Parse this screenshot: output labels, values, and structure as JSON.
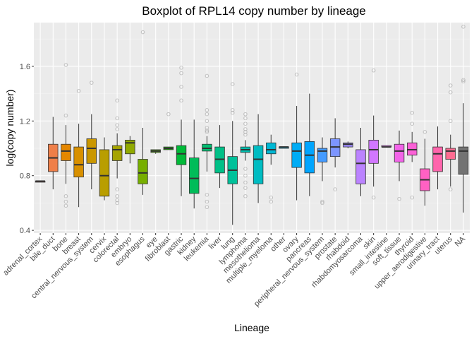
{
  "chart_data": {
    "type": "boxplot",
    "title": "Boxplot of RPL14 copy number by lineage",
    "xlabel": "Lineage",
    "ylabel": "log(copy number)",
    "ylim": [
      0.38,
      1.92
    ],
    "yticks": [
      0.4,
      0.8,
      1.2,
      1.6
    ],
    "ytick_labels": [
      "0.4",
      "0.8",
      "1.2",
      "1.6"
    ],
    "grid": true,
    "legend": "none",
    "categories": [
      {
        "name": "adrenal_cortex",
        "color": "#F8766D",
        "lw": 0.76,
        "q1": 0.76,
        "med": 0.76,
        "q3": 0.76,
        "hw": 0.76,
        "outliers": []
      },
      {
        "name": "bile_duct",
        "color": "#EF7F49",
        "lw": 0.7,
        "q1": 0.83,
        "med": 0.93,
        "q3": 1.03,
        "hw": 1.23,
        "outliers": []
      },
      {
        "name": "bone",
        "color": "#E58700",
        "lw": 0.74,
        "q1": 0.91,
        "med": 0.98,
        "q3": 1.03,
        "hw": 1.17,
        "outliers": [
          0.58,
          0.61,
          0.65,
          1.24,
          1.61
        ]
      },
      {
        "name": "breast",
        "color": "#D89000",
        "lw": 0.57,
        "q1": 0.79,
        "med": 0.88,
        "q3": 1.01,
        "hw": 1.18,
        "outliers": [
          1.42
        ]
      },
      {
        "name": "central_nervous_system",
        "color": "#CA9700",
        "lw": 0.7,
        "q1": 0.89,
        "med": 1.0,
        "q3": 1.07,
        "hw": 1.25,
        "outliers": [
          1.48
        ]
      },
      {
        "name": "cervix",
        "color": "#B99E00",
        "lw": 0.62,
        "q1": 0.65,
        "med": 0.8,
        "q3": 0.99,
        "hw": 1.08,
        "outliers": []
      },
      {
        "name": "colorectal",
        "color": "#A6A400",
        "lw": 0.78,
        "q1": 0.91,
        "med": 0.99,
        "q3": 1.02,
        "hw": 1.11,
        "outliers": [
          0.6,
          0.62,
          0.65,
          0.7,
          1.14,
          1.17,
          1.22,
          1.35
        ]
      },
      {
        "name": "embryo",
        "color": "#91AA00",
        "lw": 0.89,
        "q1": 0.96,
        "med": 1.04,
        "q3": 1.06,
        "hw": 1.09,
        "outliers": []
      },
      {
        "name": "esophagus",
        "color": "#77AF00",
        "lw": 0.66,
        "q1": 0.74,
        "med": 0.82,
        "q3": 0.92,
        "hw": 1.15,
        "outliers": [
          1.85
        ]
      },
      {
        "name": "eye",
        "color": "#52B400",
        "lw": 0.96,
        "q1": 0.97,
        "med": 0.98,
        "q3": 0.99,
        "hw": 0.99,
        "outliers": []
      },
      {
        "name": "fibroblast",
        "color": "#1CB700",
        "lw": 0.99,
        "q1": 0.99,
        "med": 1.0,
        "q3": 1.01,
        "hw": 1.01,
        "outliers": [
          1.25
        ]
      },
      {
        "name": "gastric",
        "color": "#00BA38",
        "lw": 0.65,
        "q1": 0.88,
        "med": 0.96,
        "q3": 1.02,
        "hw": 1.21,
        "outliers": [
          1.35,
          1.45,
          1.55,
          1.59
        ]
      },
      {
        "name": "kidney",
        "color": "#00BC59",
        "lw": 0.56,
        "q1": 0.67,
        "med": 0.78,
        "q3": 0.93,
        "hw": 1.21,
        "outliers": []
      },
      {
        "name": "leukemia",
        "color": "#00BE72",
        "lw": 0.83,
        "q1": 0.98,
        "med": 1.0,
        "q3": 1.03,
        "hw": 1.09,
        "outliers": [
          0.57,
          0.61,
          0.66,
          1.12,
          1.13,
          1.15,
          1.2,
          1.25,
          1.28,
          1.53
        ]
      },
      {
        "name": "liver",
        "color": "#00C087",
        "lw": 0.71,
        "q1": 0.82,
        "med": 0.92,
        "q3": 1.01,
        "hw": 1.17,
        "outliers": []
      },
      {
        "name": "lung",
        "color": "#00C19A",
        "lw": 0.44,
        "q1": 0.74,
        "med": 0.84,
        "q3": 0.94,
        "hw": 1.2,
        "outliers": [
          1.26,
          1.28,
          1.47
        ]
      },
      {
        "name": "lymphoma",
        "color": "#00C0AF",
        "lw": 0.91,
        "q1": 0.97,
        "med": 0.99,
        "q3": 1.01,
        "hw": 1.06,
        "outliers": [
          0.65,
          0.71,
          0.75,
          0.8,
          0.85,
          1.1,
          1.12,
          1.14,
          1.18,
          1.22,
          1.25
        ]
      },
      {
        "name": "mesothelioma",
        "color": "#00BCC2",
        "lw": 0.6,
        "q1": 0.74,
        "med": 0.92,
        "q3": 1.02,
        "hw": 1.25,
        "outliers": []
      },
      {
        "name": "multiple_myeloma",
        "color": "#00B8D4",
        "lw": 0.88,
        "q1": 0.96,
        "med": 0.99,
        "q3": 1.04,
        "hw": 1.1,
        "outliers": [
          0.61,
          0.64
        ]
      },
      {
        "name": "other",
        "color": "#00B3E6",
        "lw": 1.0,
        "q1": 1.0,
        "med": 1.01,
        "q3": 1.01,
        "hw": 1.01,
        "outliers": []
      },
      {
        "name": "ovary",
        "color": "#00ACF5",
        "lw": 0.62,
        "q1": 0.86,
        "med": 0.98,
        "q3": 1.04,
        "hw": 1.31,
        "outliers": [
          1.54
        ]
      },
      {
        "name": "pancreas",
        "color": "#00A5FF",
        "lw": 0.65,
        "q1": 0.82,
        "med": 0.95,
        "q3": 1.05,
        "hw": 1.4,
        "outliers": []
      },
      {
        "name": "peripheral_nervous_system",
        "color": "#449BFF",
        "lw": 0.76,
        "q1": 0.9,
        "med": 0.98,
        "q3": 1.0,
        "hw": 1.08,
        "outliers": [
          0.6,
          0.61
        ]
      },
      {
        "name": "prostate",
        "color": "#7C95FF",
        "lw": 0.86,
        "q1": 0.94,
        "med": 1.01,
        "q3": 1.07,
        "hw": 1.22,
        "outliers": [
          0.7
        ]
      },
      {
        "name": "rhabdoid",
        "color": "#9F8CFF",
        "lw": 1.0,
        "q1": 1.01,
        "med": 1.03,
        "q3": 1.04,
        "hw": 1.05,
        "outliers": []
      },
      {
        "name": "rhabdomyosarcoma",
        "color": "#BB83FF",
        "lw": 0.65,
        "q1": 0.74,
        "med": 0.89,
        "q3": 0.99,
        "hw": 1.15,
        "outliers": []
      },
      {
        "name": "skin",
        "color": "#D277FF",
        "lw": 0.72,
        "q1": 0.89,
        "med": 0.99,
        "q3": 1.06,
        "hw": 1.24,
        "outliers": [
          0.64,
          1.57
        ]
      },
      {
        "name": "small_intestine",
        "color": "#E46DF6",
        "lw": 1.01,
        "q1": 1.01,
        "med": 1.01,
        "q3": 1.02,
        "hw": 1.02,
        "outliers": []
      },
      {
        "name": "soft_tissue",
        "color": "#F264E8",
        "lw": 0.76,
        "q1": 0.9,
        "med": 0.98,
        "q3": 1.03,
        "hw": 1.13,
        "outliers": [
          0.63
        ]
      },
      {
        "name": "thyroid",
        "color": "#FB61D7",
        "lw": 0.9,
        "q1": 0.95,
        "med": 0.99,
        "q3": 1.04,
        "hw": 1.12,
        "outliers": [
          0.64,
          1.18,
          1.26
        ]
      },
      {
        "name": "upper_aerodigestive",
        "color": "#FF61C3",
        "lw": 0.58,
        "q1": 0.69,
        "med": 0.77,
        "q3": 0.85,
        "hw": 1.07,
        "outliers": [
          1.12
        ]
      },
      {
        "name": "urinary_tract",
        "color": "#FF65AC",
        "lw": 0.7,
        "q1": 0.83,
        "med": 0.96,
        "q3": 1.01,
        "hw": 1.16,
        "outliers": []
      },
      {
        "name": "uterus",
        "color": "#FF6C91",
        "lw": 0.72,
        "q1": 0.92,
        "med": 0.98,
        "q3": 1.0,
        "hw": 1.1,
        "outliers": [
          0.7,
          1.2,
          1.41,
          1.46
        ]
      },
      {
        "name": "NA",
        "color": "#737373",
        "lw": 0.53,
        "q1": 0.81,
        "med": 0.98,
        "q3": 1.01,
        "hw": 1.33,
        "outliers": [
          1.49,
          1.5,
          1.89
        ]
      }
    ]
  }
}
